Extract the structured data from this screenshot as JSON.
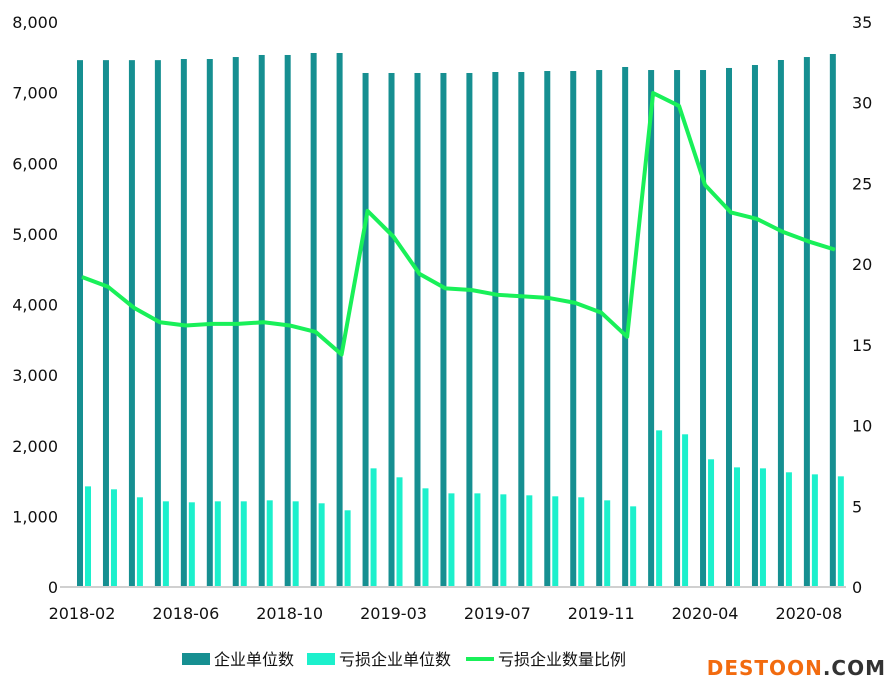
{
  "chart_data": {
    "type": "bar+line",
    "categories": [
      "2018-02",
      "2018-03",
      "2018-04",
      "2018-05",
      "2018-06",
      "2018-07",
      "2018-08",
      "2018-09",
      "2018-10",
      "2018-11",
      "2018-12",
      "2019-02",
      "2019-03",
      "2019-04",
      "2019-05",
      "2019-06",
      "2019-07",
      "2019-08",
      "2019-09",
      "2019-10",
      "2019-11",
      "2019-12",
      "2020-02",
      "2020-03",
      "2020-04",
      "2020-05",
      "2020-06",
      "2020-07",
      "2020-08",
      "2020-09"
    ],
    "x_tick_labels": [
      "2018-02",
      "2018-06",
      "2018-10",
      "2019-03",
      "2019-07",
      "2019-11",
      "2020-04",
      "2020-08"
    ],
    "x_tick_categories": [
      "2018-02",
      "2018-06",
      "2018-10",
      "2019-03",
      "2019-07",
      "2019-11",
      "2020-04",
      "2020-08"
    ],
    "y_left": {
      "lim": [
        0,
        8000
      ],
      "ticks": [
        "0",
        "1,000",
        "2,000",
        "3,000",
        "4,000",
        "5,000",
        "6,000",
        "7,000",
        "8,000"
      ]
    },
    "y_right": {
      "lim": [
        0,
        35
      ],
      "ticks": [
        "0",
        "5",
        "10",
        "15",
        "20",
        "25",
        "30",
        "35"
      ]
    },
    "series": [
      {
        "name": "企业单位数",
        "type": "bar",
        "axis": "left",
        "color": "#168f91",
        "values": [
          7460,
          7460,
          7460,
          7460,
          7476,
          7476,
          7504,
          7533,
          7533,
          7561,
          7561,
          7278,
          7278,
          7278,
          7278,
          7278,
          7292,
          7292,
          7306,
          7306,
          7320,
          7363,
          7320,
          7320,
          7320,
          7349,
          7391,
          7462,
          7504,
          7547
        ]
      },
      {
        "name": "亏损企业单位数",
        "type": "bar",
        "axis": "left",
        "color": "#1cf0cc",
        "values": [
          1425,
          1383,
          1270,
          1213,
          1199,
          1213,
          1213,
          1227,
          1213,
          1185,
          1086,
          1680,
          1553,
          1397,
          1326,
          1326,
          1312,
          1298,
          1284,
          1270,
          1227,
          1142,
          2218,
          2162,
          1808,
          1694,
          1680,
          1624,
          1595,
          1567
        ]
      },
      {
        "name": "亏损企业数量比例",
        "type": "line",
        "axis": "right",
        "color": "#19f059",
        "values": [
          19.2,
          18.6,
          17.3,
          16.4,
          16.2,
          16.3,
          16.3,
          16.4,
          16.2,
          15.8,
          14.4,
          23.3,
          21.7,
          19.4,
          18.5,
          18.4,
          18.1,
          18.0,
          17.9,
          17.6,
          17.0,
          15.5,
          30.6,
          29.8,
          24.9,
          23.2,
          22.8,
          22.0,
          21.4,
          20.9
        ]
      }
    ],
    "grid": false,
    "legend": "bottom"
  },
  "logo": {
    "text_a": "DESTOON",
    "text_b": ".COM",
    "color_a": "#f26b0f",
    "color_b": "#333333"
  }
}
